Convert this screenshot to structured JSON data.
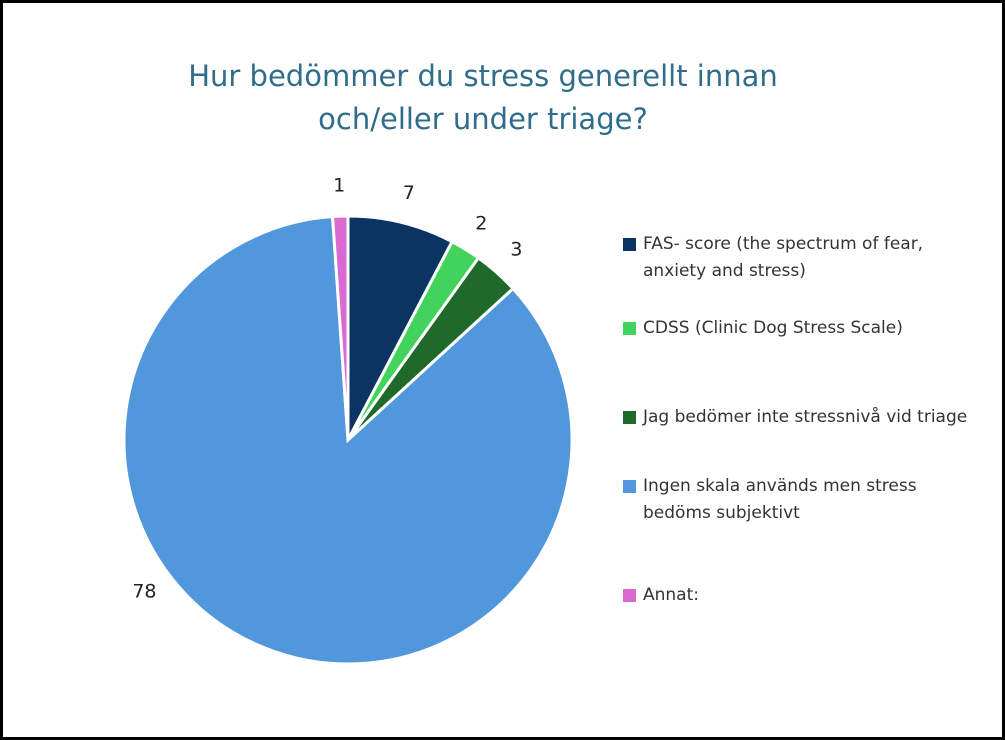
{
  "chart_data": {
    "type": "pie",
    "title": "Hur bedömmer du stress generellt innan och/eller under triage?",
    "series": [
      {
        "name": "FAS- score (the spectrum of fear, anxiety and stress)",
        "color": "#0b3463",
        "values": [
          7
        ]
      },
      {
        "name": "CDSS (Clinic Dog Stress Scale)",
        "color": "#42d35c",
        "values": [
          2
        ]
      },
      {
        "name": "Jag bedömer inte stressnivå vid triage",
        "color": "#1f6a2b",
        "values": [
          3
        ]
      },
      {
        "name": "Ingen skala används men stress bedöms subjektivt",
        "color": "#5197db",
        "values": [
          78
        ]
      },
      {
        "name": "Annat:",
        "color": "#d86ad2",
        "values": [
          1
        ]
      }
    ],
    "legend": "right"
  }
}
